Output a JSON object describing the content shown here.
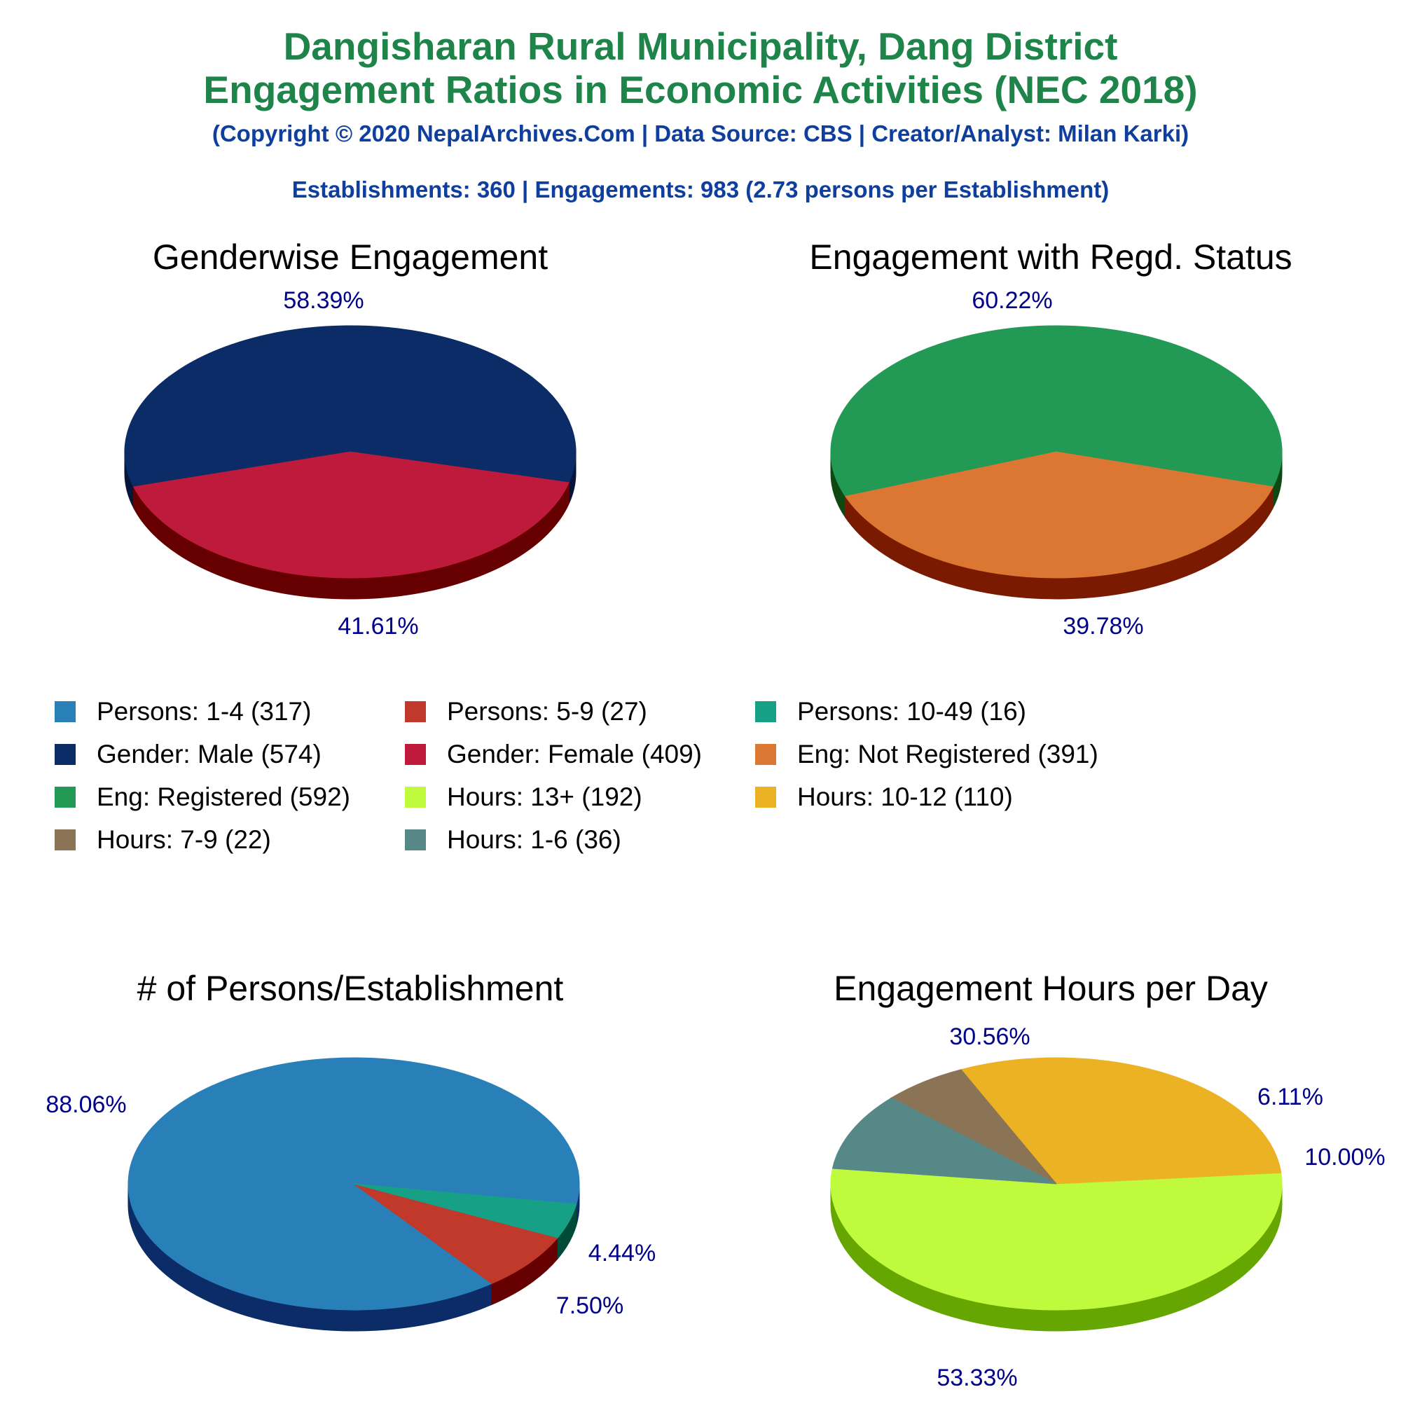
{
  "header": {
    "title_line1": "Dangisharan Rural Municipality, Dang District",
    "title_line2": "Engagement Ratios in Economic Activities (NEC 2018)",
    "copyright": "(Copyright © 2020 NepalArchives.Com | Data Source: CBS | Creator/Analyst: Milan Karki)",
    "stats": "Establishments: 360 | Engagements: 983 (2.73 persons per Establishment)"
  },
  "colors": {
    "title": "#1e8449",
    "subtitle": "#0e3e9e",
    "percent_label": "#00008b"
  },
  "legend": [
    {
      "label": "Persons: 1-4 (317)",
      "color": "#2980b9"
    },
    {
      "label": "Persons: 5-9 (27)",
      "color": "#c0392b"
    },
    {
      "label": "Persons: 10-49 (16)",
      "color": "#16a085"
    },
    {
      "label": "Gender: Male (574)",
      "color": "#0b2c66"
    },
    {
      "label": "Gender: Female (409)",
      "color": "#be1a3b"
    },
    {
      "label": "Eng: Not Registered (391)",
      "color": "#dc7633"
    },
    {
      "label": "Eng: Registered (592)",
      "color": "#229954"
    },
    {
      "label": "Hours: 13+ (192)",
      "color": "#c0fa3d"
    },
    {
      "label": "Hours: 10-12 (110)",
      "color": "#ebb224"
    },
    {
      "label": "Hours: 7-9 (22)",
      "color": "#8b7355"
    },
    {
      "label": "Hours: 1-6 (36)",
      "color": "#578888"
    }
  ],
  "chart_data": [
    {
      "type": "pie",
      "title": "Genderwise Engagement",
      "slices": [
        {
          "name": "Gender: Male",
          "value": 574,
          "label": "58.39%",
          "color": "#0b2c66",
          "side": "#05163a"
        },
        {
          "name": "Gender: Female",
          "value": 409,
          "label": "41.61%",
          "color": "#be1a3b",
          "side": "#660000"
        }
      ]
    },
    {
      "type": "pie",
      "title": "Engagement with Regd. Status",
      "slices": [
        {
          "name": "Eng: Registered",
          "value": 592,
          "label": "60.22%",
          "color": "#229954",
          "side": "#0d4a12"
        },
        {
          "name": "Eng: Not Registered",
          "value": 391,
          "label": "39.78%",
          "color": "#dc7633",
          "side": "#7a1a00"
        }
      ]
    },
    {
      "type": "pie",
      "title": "# of Persons/Establishment",
      "slices": [
        {
          "name": "Persons: 1-4",
          "value": 317,
          "label": "88.06%",
          "color": "#2980b9",
          "side": "#0b2c66"
        },
        {
          "name": "Persons: 5-9",
          "value": 27,
          "label": "7.50%",
          "color": "#c0392b",
          "side": "#660000"
        },
        {
          "name": "Persons: 10-49",
          "value": 16,
          "label": "4.44%",
          "color": "#16a085",
          "side": "#004a3a"
        }
      ]
    },
    {
      "type": "pie",
      "title": "Engagement Hours per Day",
      "slices": [
        {
          "name": "Hours: 13+",
          "value": 192,
          "label": "53.33%",
          "color": "#c0fa3d",
          "side": "#66a600"
        },
        {
          "name": "Hours: 10-12",
          "value": 110,
          "label": "30.56%",
          "color": "#ebb224",
          "side": "#8a6000"
        },
        {
          "name": "Hours: 7-9",
          "value": 22,
          "label": "6.11%",
          "color": "#8b7355",
          "side": "#4a3a20"
        },
        {
          "name": "Hours: 1-6",
          "value": 36,
          "label": "10.00%",
          "color": "#578888",
          "side": "#1f4040"
        }
      ]
    }
  ]
}
